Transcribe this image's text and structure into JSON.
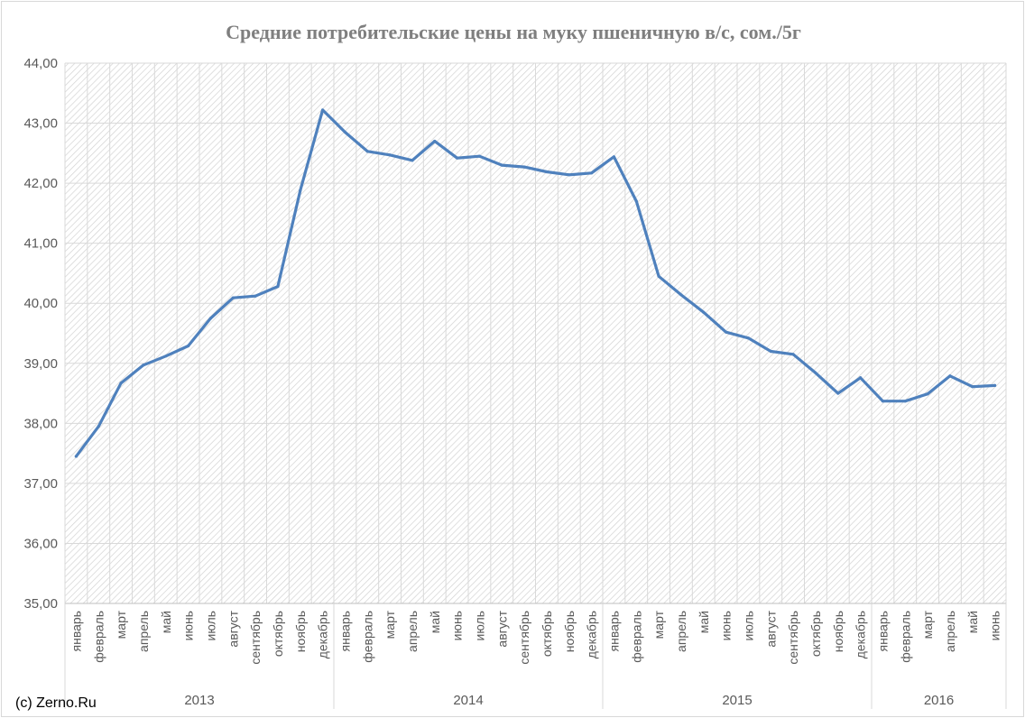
{
  "credit": "(c) Zerno.Ru",
  "chart_data": {
    "type": "line",
    "title": "Средние потребительские цены на муку пшеничную в/с, сом./5г",
    "ylim": [
      35,
      44
    ],
    "yticks": [
      "35,00",
      "36,00",
      "37,00",
      "38,00",
      "39,00",
      "40,00",
      "41,00",
      "42,00",
      "43,00",
      "44,00"
    ],
    "grid": true,
    "line_color": "#4f81bd",
    "categories": [
      "январь",
      "февраль",
      "март",
      "апрель",
      "май",
      "июнь",
      "июль",
      "август",
      "сентябрь",
      "октябрь",
      "ноябрь",
      "декабрь",
      "январь",
      "февраль",
      "март",
      "апрель",
      "май",
      "июнь",
      "июль",
      "август",
      "сентябрь",
      "октябрь",
      "ноябрь",
      "декабрь",
      "январь",
      "февраль",
      "март",
      "апрель",
      "май",
      "июнь",
      "июль",
      "август",
      "сентябрь",
      "октябрь",
      "ноябрь",
      "декабрь",
      "январь",
      "февраль",
      "март",
      "апрель",
      "май",
      "июнь"
    ],
    "years": [
      {
        "label": "2013",
        "months": 12
      },
      {
        "label": "2014",
        "months": 12
      },
      {
        "label": "2015",
        "months": 12
      },
      {
        "label": "2016",
        "months": 6
      }
    ],
    "values": [
      37.45,
      37.95,
      38.67,
      38.97,
      39.12,
      39.29,
      39.75,
      40.09,
      40.12,
      40.28,
      41.88,
      43.22,
      42.85,
      42.53,
      42.47,
      42.38,
      42.7,
      42.42,
      42.45,
      42.3,
      42.27,
      42.19,
      42.14,
      42.17,
      42.44,
      41.7,
      40.45,
      40.14,
      39.85,
      39.52,
      39.42,
      39.2,
      39.15,
      38.84,
      38.5,
      38.76,
      38.37,
      38.37,
      38.49,
      38.79,
      38.61,
      38.63
    ]
  }
}
